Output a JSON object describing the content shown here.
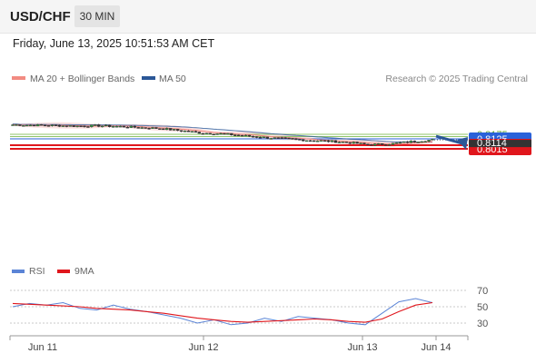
{
  "header": {
    "symbol": "USD/CHF",
    "timeframe": "30 MIN"
  },
  "timestamp": "Friday, June 13, 2025 10:51:53 AM CET",
  "legend": {
    "items": [
      {
        "label": "MA 20 + Bollinger Bands",
        "color": "#f28b82"
      },
      {
        "label": "MA 50",
        "color": "#2b5797"
      }
    ],
    "credit": "Research © 2025 Trading Central"
  },
  "chart_data": [
    {
      "type": "candlestick",
      "symbol": "USD/CHF",
      "timeframe": "30 MIN",
      "x_tick_labels": [
        "Jun 11",
        "Jun 12",
        "Jun 13",
        "Jun 14"
      ],
      "levels": [
        {
          "value": 0.8175,
          "label": "0.8175",
          "kind": "resistance",
          "color": "#8fc46a",
          "text_color": "#5aa02c"
        },
        {
          "value": 0.815,
          "label": "0.8150",
          "kind": "resistance",
          "color": "#8fc46a",
          "text_color": "#5aa02c"
        },
        {
          "value": 0.8125,
          "label": "0.8125",
          "kind": "pivot",
          "color": "#2a62d9",
          "text_color": "#ffffff"
        },
        {
          "value": 0.8055,
          "label": "0.8055",
          "kind": "support",
          "color": "#e0161c",
          "text_color": "#ffffff"
        },
        {
          "value": 0.8015,
          "label": "0.8015",
          "kind": "support",
          "color": "#e0161c",
          "text_color": "#ffffff"
        }
      ],
      "current_price": {
        "value": 0.8114,
        "label": "0.8114",
        "color": "#333333"
      },
      "forecast_arrow": {
        "from": 0.8114,
        "to": 0.8015,
        "direction": "down",
        "color": "#2b5797"
      },
      "overlays": [
        "MA 20 + Bollinger Bands",
        "MA 50"
      ],
      "approx_close_path": [
        0.828,
        0.8275,
        0.8272,
        0.8265,
        0.827,
        0.8262,
        0.825,
        0.824,
        0.8215,
        0.819,
        0.818,
        0.816,
        0.814,
        0.8125,
        0.811,
        0.81,
        0.8085,
        0.806,
        0.807,
        0.8095,
        0.8114
      ]
    },
    {
      "type": "line",
      "indicator": "RSI",
      "legend": [
        {
          "name": "RSI",
          "color": "#5b84d6"
        },
        {
          "name": "9MA",
          "color": "#e0161c"
        }
      ],
      "y_ticks": [
        70,
        50,
        30
      ],
      "ylim": [
        20,
        80
      ],
      "approx_rsi": [
        50,
        54,
        52,
        55,
        48,
        46,
        52,
        47,
        44,
        40,
        36,
        30,
        34,
        28,
        30,
        36,
        32,
        38,
        36,
        34,
        30,
        28,
        42,
        56,
        60,
        55
      ],
      "approx_ma9": [
        54,
        53,
        52,
        51,
        50,
        48,
        47,
        46,
        44,
        42,
        39,
        36,
        34,
        32,
        31,
        32,
        33,
        34,
        35,
        34,
        32,
        31,
        35,
        44,
        52,
        55
      ]
    }
  ]
}
